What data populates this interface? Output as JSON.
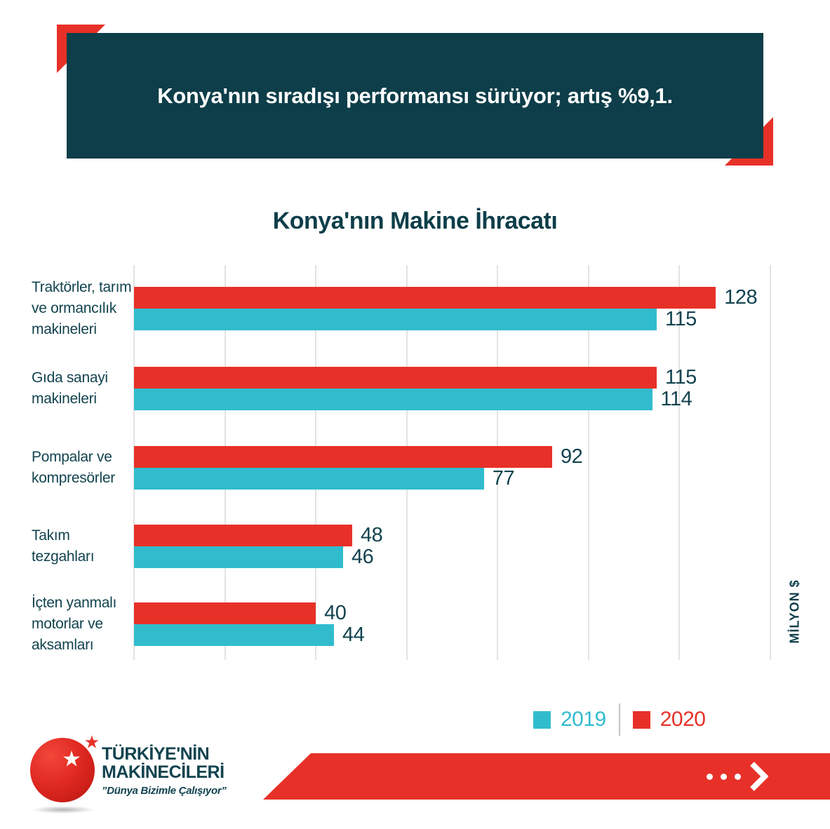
{
  "colors": {
    "teal_dark": "#0d3e49",
    "text_teal": "#12434f",
    "red": "#e73128",
    "cyan": "#31bcce",
    "gridline": "#e3e3e3",
    "legend_divider": "#c0c5c7"
  },
  "header": {
    "banner_text": "Konya'nın sıradışı performansı sürüyor; artış %9,1."
  },
  "chart": {
    "title": "Konya'nın Makine İhracatı",
    "axis_unit_label": "MİLYON $"
  },
  "chart_data": {
    "type": "bar",
    "orientation": "horizontal",
    "title": "Konya'nın Makine İhracatı",
    "xlabel": "MİLYON $",
    "xlim": [
      0,
      140
    ],
    "gridline_step": 20,
    "grid": true,
    "legend_position": "bottom-right",
    "categories": [
      "Traktörler, tarım ve ormancılık makineleri",
      "Gıda sanayi makineleri",
      "Pompalar ve kompresörler",
      "Takım tezgahları",
      "İçten yanmalı motorlar ve aksamları"
    ],
    "category_label_lines": [
      [
        "Traktörler, tarım",
        "ve ormancılık",
        "makineleri"
      ],
      [
        "Gıda sanayi",
        "makineleri"
      ],
      [
        "Pompalar ve",
        "kompresörler"
      ],
      [
        "Takım",
        "tezgahları"
      ],
      [
        "İçten yanmalı",
        "motorlar ve",
        "aksamları"
      ]
    ],
    "series": [
      {
        "name": "2020",
        "color": "#e73128",
        "values": [
          128,
          115,
          92,
          48,
          40
        ]
      },
      {
        "name": "2019",
        "color": "#31bcce",
        "values": [
          115,
          114,
          77,
          46,
          44
        ]
      }
    ]
  },
  "legend": {
    "items": [
      {
        "label": "2019",
        "color": "#31bcce"
      },
      {
        "label": "2020",
        "color": "#e73128"
      }
    ]
  },
  "footer": {
    "logo": {
      "line1": "TÜRKİYE'NİN",
      "line2": "MAKİNECİLERİ",
      "tagline": "”Dünya Bizimle Çalışıyor”",
      "star_icon": "★"
    },
    "banner": {
      "dots_count": 3
    }
  }
}
